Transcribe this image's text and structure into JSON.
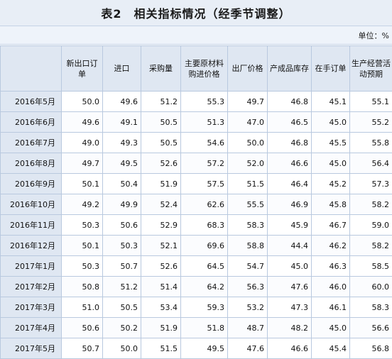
{
  "title": "表2　相关指标情况（经季节调整）",
  "unit": "单位：%",
  "columns": [
    "",
    "新出口订单",
    "进口",
    "采购量",
    "主要原材料购进价格",
    "出厂价格",
    "产成品库存",
    "在手订单",
    "生产经营活动预期"
  ],
  "rows": [
    {
      "period": "2016年5月",
      "values": [
        "50.0",
        "49.6",
        "51.2",
        "55.3",
        "49.7",
        "46.8",
        "45.1",
        "55.1"
      ]
    },
    {
      "period": "2016年6月",
      "values": [
        "49.6",
        "49.1",
        "50.5",
        "51.3",
        "47.0",
        "46.5",
        "45.0",
        "55.2"
      ]
    },
    {
      "period": "2016年7月",
      "values": [
        "49.0",
        "49.3",
        "50.5",
        "54.6",
        "50.0",
        "46.8",
        "45.5",
        "55.8"
      ]
    },
    {
      "period": "2016年8月",
      "values": [
        "49.7",
        "49.5",
        "52.6",
        "57.2",
        "52.0",
        "46.6",
        "45.0",
        "56.4"
      ]
    },
    {
      "period": "2016年9月",
      "values": [
        "50.1",
        "50.4",
        "51.9",
        "57.5",
        "51.5",
        "46.4",
        "45.2",
        "57.3"
      ]
    },
    {
      "period": "2016年10月",
      "values": [
        "49.2",
        "49.9",
        "52.4",
        "62.6",
        "55.5",
        "46.9",
        "45.8",
        "58.2"
      ]
    },
    {
      "period": "2016年11月",
      "values": [
        "50.3",
        "50.6",
        "52.9",
        "68.3",
        "58.3",
        "45.9",
        "46.7",
        "59.0"
      ]
    },
    {
      "period": "2016年12月",
      "values": [
        "50.1",
        "50.3",
        "52.1",
        "69.6",
        "58.8",
        "44.4",
        "46.2",
        "58.2"
      ]
    },
    {
      "period": "2017年1月",
      "values": [
        "50.3",
        "50.7",
        "52.6",
        "64.5",
        "54.7",
        "45.0",
        "46.3",
        "58.5"
      ]
    },
    {
      "period": "2017年2月",
      "values": [
        "50.8",
        "51.2",
        "51.4",
        "64.2",
        "56.3",
        "47.6",
        "46.0",
        "60.0"
      ]
    },
    {
      "period": "2017年3月",
      "values": [
        "51.0",
        "50.5",
        "53.4",
        "59.3",
        "53.2",
        "47.3",
        "46.1",
        "58.3"
      ]
    },
    {
      "period": "2017年4月",
      "values": [
        "50.6",
        "50.2",
        "51.9",
        "51.8",
        "48.7",
        "48.2",
        "45.0",
        "56.6"
      ]
    },
    {
      "period": "2017年5月",
      "values": [
        "50.7",
        "50.0",
        "51.5",
        "49.5",
        "47.6",
        "46.6",
        "45.4",
        "56.8"
      ]
    }
  ]
}
